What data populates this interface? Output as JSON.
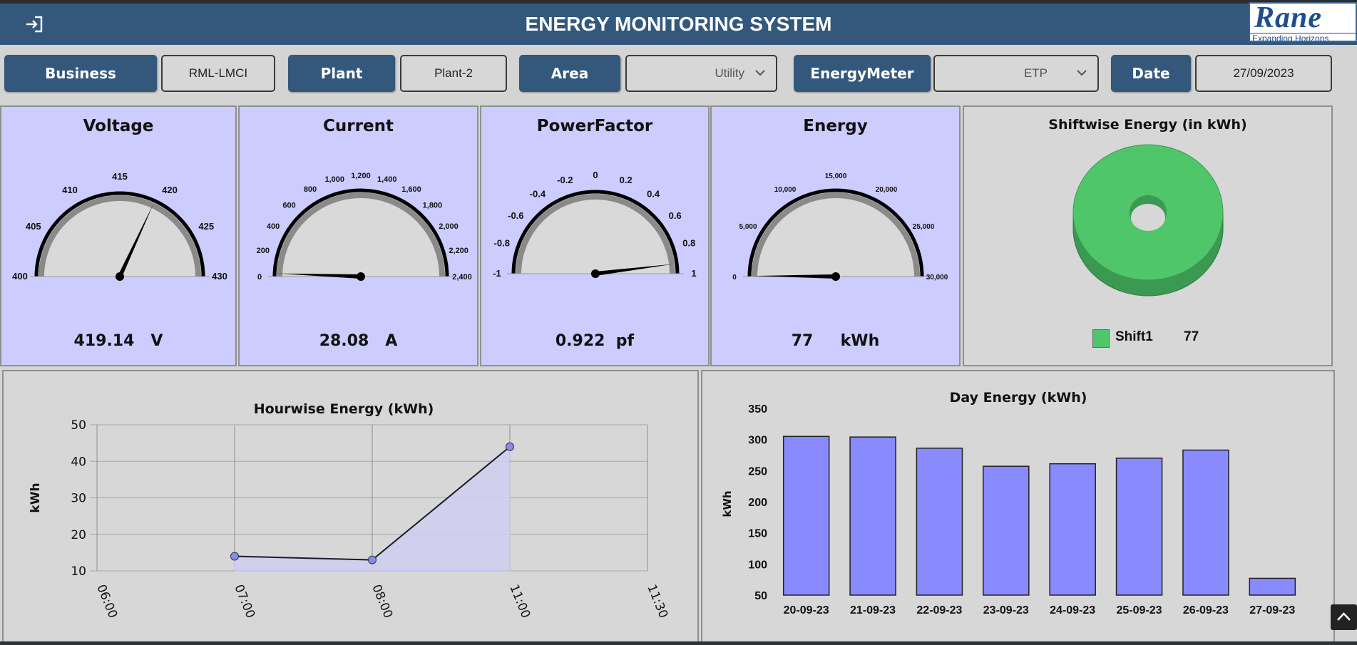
{
  "header": {
    "title": "ENERGY MONITORING SYSTEM",
    "logo_text": "Rane",
    "logo_tagline": "Expanding Horizons"
  },
  "filters": {
    "business_label": "Business",
    "business_value": "RML-LMCI",
    "plant_label": "Plant",
    "plant_value": "Plant-2",
    "area_label": "Area",
    "area_value": "Utility",
    "meter_label": "EnergyMeter",
    "meter_value": "ETP",
    "date_label": "Date",
    "date_value": "27/09/2023"
  },
  "gauges": [
    {
      "title": "Voltage",
      "value_text": "419.14",
      "unit": "V",
      "value": 419.14,
      "min": 400,
      "max": 430,
      "ticks": [
        "400",
        "405",
        "410",
        "415",
        "420",
        "425",
        "430"
      ]
    },
    {
      "title": "Current",
      "value_text": "28.08",
      "unit": "A",
      "value": 28.08,
      "min": 0,
      "max": 2400,
      "ticks": [
        "0",
        "200",
        "400",
        "600",
        "800",
        "1,000",
        "1,200",
        "1,400",
        "1,600",
        "1,800",
        "2,000",
        "2,200",
        "2,400"
      ]
    },
    {
      "title": "PowerFactor",
      "value_text": "0.922",
      "unit": "pf",
      "value": 0.922,
      "min": -1,
      "max": 1,
      "ticks": [
        "-1",
        "-0.8",
        "-0.6",
        "-0.4",
        "-0.2",
        "0",
        "0.2",
        "0.4",
        "0.6",
        "0.8",
        "1"
      ]
    },
    {
      "title": "Energy",
      "value_text": "77",
      "unit": "kWh",
      "value": 77,
      "min": 0,
      "max": 30000,
      "ticks": [
        "0",
        "5,000",
        "10,000",
        "15,000",
        "20,000",
        "25,000",
        "30,000"
      ]
    }
  ],
  "shift_chart": {
    "title": "Shiftwise Energy (in kWh)",
    "type": "pie",
    "slices": [
      {
        "name": "Shift1",
        "value": 77,
        "value_text": "77"
      }
    ],
    "colors": {
      "top": "#4fc66a",
      "side": "#3b9a52"
    }
  },
  "chart_data": [
    {
      "type": "area",
      "title": "Hourwise Energy (kWh)",
      "xlabel": "",
      "ylabel": "kWh",
      "ylim": [
        10,
        50
      ],
      "yticks": [
        "10",
        "20",
        "30",
        "40",
        "50"
      ],
      "xticks": [
        "06:00",
        "07:00",
        "08:00",
        "11:00",
        "11:30"
      ],
      "points": [
        {
          "x_index": 1.0,
          "y": 14
        },
        {
          "x_index": 2.0,
          "y": 13
        },
        {
          "x_index": 3.0,
          "y": 44
        }
      ],
      "colors": {
        "fill": "#cfcff0",
        "line": "#1a1a2e",
        "marker": "#8a8af0"
      }
    },
    {
      "type": "bar",
      "title": "Day Energy (kWh)",
      "xlabel": "",
      "ylabel": "kWh",
      "ylim": [
        50,
        350
      ],
      "yticks": [
        "50",
        "100",
        "150",
        "200",
        "250",
        "300",
        "350"
      ],
      "categories": [
        "20-09-23",
        "21-09-23",
        "22-09-23",
        "23-09-23",
        "24-09-23",
        "25-09-23",
        "26-09-23",
        "27-09-23"
      ],
      "values": [
        305,
        304,
        286,
        257,
        261,
        270,
        283,
        77
      ],
      "colors": {
        "bar": "#8a8aff"
      }
    }
  ]
}
